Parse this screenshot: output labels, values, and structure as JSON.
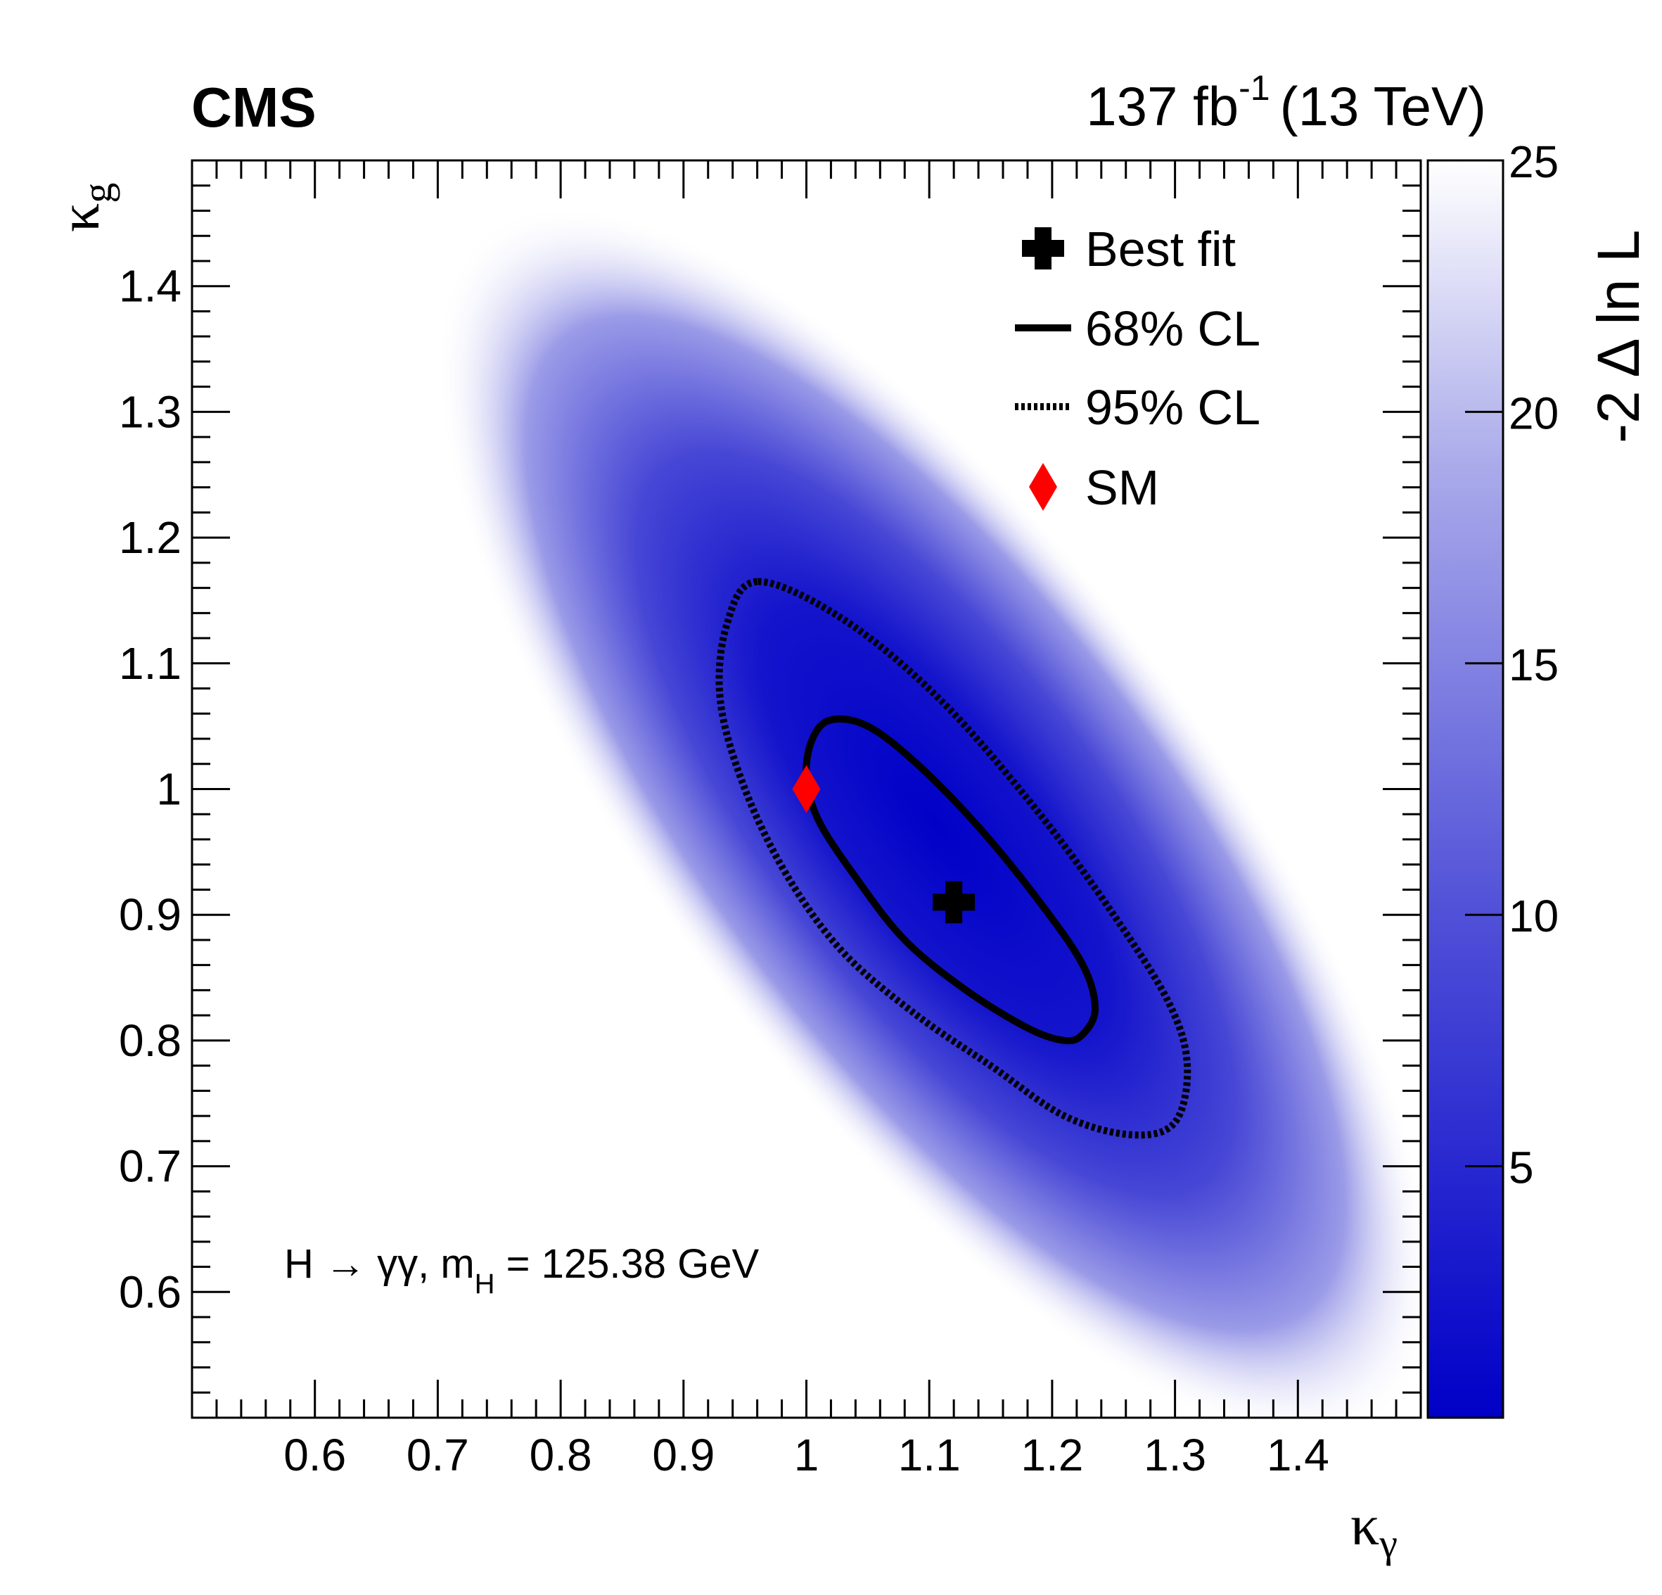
{
  "header": {
    "experiment": "CMS",
    "lumi_value": "137 fb",
    "lumi_exp": "-1",
    "energy": "(13 TeV)"
  },
  "annotation": {
    "prefix": "H → γγ, m",
    "subscript": "H",
    "suffix": " = 125.38 GeV"
  },
  "legend": {
    "best_fit": "Best fit",
    "cl68": "68% CL",
    "cl95": "95% CL",
    "sm": "SM"
  },
  "colors": {
    "min": "#0000c8",
    "max": "#ffffff",
    "contour": "#000000",
    "sm_marker": "#ff0000"
  },
  "chart_data": {
    "type": "heatmap",
    "xlabel": "κγ",
    "ylabel": "κg",
    "zlabel": "-2 Δ ln L",
    "xlim": [
      0.5,
      1.5
    ],
    "ylim": [
      0.5,
      1.5
    ],
    "zlim": [
      0,
      25
    ],
    "xticks": [
      "0.6",
      "0.7",
      "0.8",
      "0.9",
      "1",
      "1.1",
      "1.2",
      "1.3",
      "1.4"
    ],
    "yticks": [
      "0.6",
      "0.7",
      "0.8",
      "0.9",
      "1",
      "1.1",
      "1.2",
      "1.3",
      "1.4"
    ],
    "zticks": [
      "5",
      "10",
      "15",
      "20",
      "25"
    ],
    "best_fit": {
      "x": 1.12,
      "y": 0.91
    },
    "sm": {
      "x": 1.0,
      "y": 1.0
    },
    "contour_68": [
      [
        1.02,
        1.055
      ],
      [
        1.005,
        1.04
      ],
      [
        1.0,
        1.01
      ],
      [
        1.01,
        0.975
      ],
      [
        1.04,
        0.93
      ],
      [
        1.08,
        0.88
      ],
      [
        1.13,
        0.84
      ],
      [
        1.18,
        0.81
      ],
      [
        1.21,
        0.8
      ],
      [
        1.225,
        0.805
      ],
      [
        1.235,
        0.825
      ],
      [
        1.225,
        0.86
      ],
      [
        1.19,
        0.91
      ],
      [
        1.14,
        0.97
      ],
      [
        1.09,
        1.02
      ],
      [
        1.05,
        1.05
      ]
    ],
    "contour_95": [
      [
        0.96,
        1.165
      ],
      [
        0.935,
        1.13
      ],
      [
        0.93,
        1.07
      ],
      [
        0.95,
        1.0
      ],
      [
        0.985,
        0.93
      ],
      [
        1.03,
        0.87
      ],
      [
        1.09,
        0.82
      ],
      [
        1.15,
        0.78
      ],
      [
        1.21,
        0.74
      ],
      [
        1.265,
        0.725
      ],
      [
        1.3,
        0.735
      ],
      [
        1.31,
        0.78
      ],
      [
        1.295,
        0.83
      ],
      [
        1.25,
        0.9
      ],
      [
        1.19,
        0.98
      ],
      [
        1.11,
        1.07
      ],
      [
        1.03,
        1.135
      ]
    ]
  }
}
